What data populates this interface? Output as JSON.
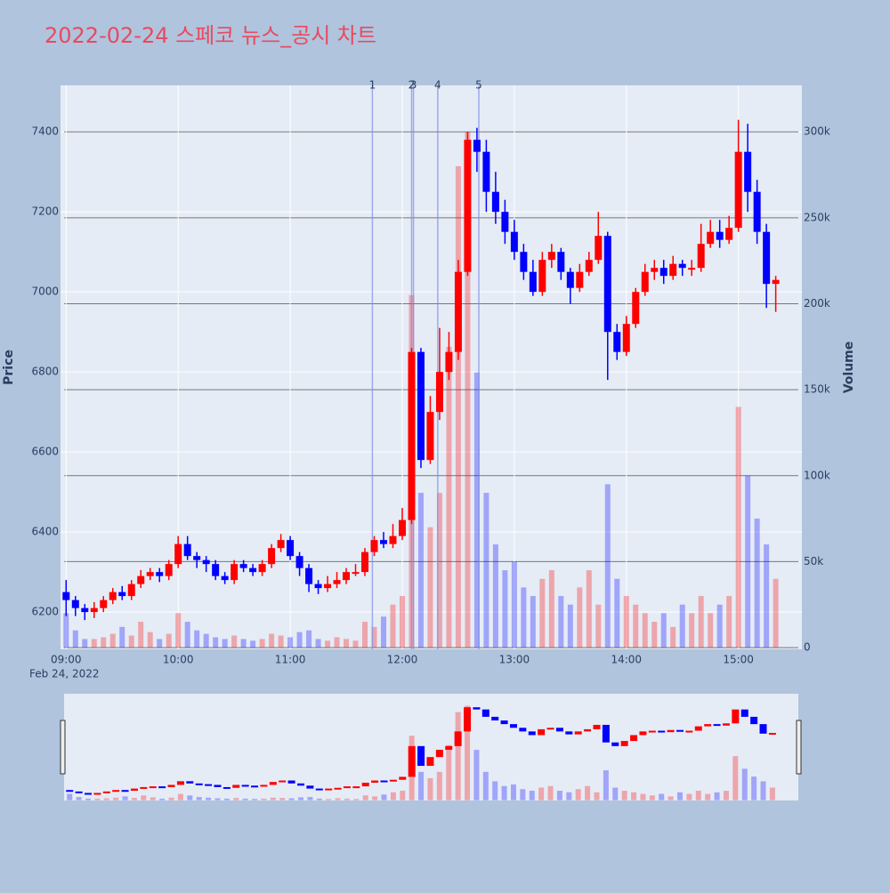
{
  "chart_data": {
    "type": "candlestick",
    "title": "2022-02-24 스페코 뉴스_공시 차트",
    "y_title": "Price",
    "y2_title": "Volume",
    "x_sublabel": "Feb 24, 2022",
    "increasing_color": "#ff0000",
    "decreasing_color": "#0000ff",
    "x": [
      "09:00",
      "09:05",
      "09:10",
      "09:15",
      "09:20",
      "09:25",
      "09:30",
      "09:35",
      "09:40",
      "09:45",
      "09:50",
      "09:55",
      "10:00",
      "10:05",
      "10:10",
      "10:15",
      "10:20",
      "10:25",
      "10:30",
      "10:35",
      "10:40",
      "10:45",
      "10:50",
      "10:55",
      "11:00",
      "11:05",
      "11:10",
      "11:15",
      "11:20",
      "11:25",
      "11:30",
      "11:35",
      "11:40",
      "11:45",
      "11:50",
      "11:55",
      "12:00",
      "12:05",
      "12:10",
      "12:15",
      "12:20",
      "12:25",
      "12:30",
      "12:35",
      "12:40",
      "12:45",
      "12:50",
      "12:55",
      "13:00",
      "13:05",
      "13:10",
      "13:15",
      "13:20",
      "13:25",
      "13:30",
      "13:35",
      "13:40",
      "13:45",
      "13:50",
      "13:55",
      "14:00",
      "14:05",
      "14:10",
      "14:15",
      "14:20",
      "14:25",
      "14:30",
      "14:35",
      "14:40",
      "14:45",
      "14:50",
      "14:55",
      "15:00",
      "15:05",
      "15:10",
      "15:15",
      "15:20"
    ],
    "open": [
      6250,
      6230,
      6210,
      6200,
      6210,
      6230,
      6250,
      6240,
      6270,
      6290,
      6300,
      6290,
      6320,
      6370,
      6340,
      6330,
      6320,
      6290,
      6280,
      6320,
      6310,
      6300,
      6320,
      6360,
      6380,
      6340,
      6310,
      6270,
      6260,
      6270,
      6280,
      6300,
      6300,
      6350,
      6380,
      6370,
      6390,
      6430,
      6850,
      6580,
      6700,
      6800,
      6850,
      7050,
      7380,
      7350,
      7250,
      7200,
      7150,
      7100,
      7050,
      7000,
      7080,
      7100,
      7050,
      7010,
      7050,
      7080,
      7140,
      6900,
      6850,
      6920,
      7000,
      7050,
      7060,
      7040,
      7070,
      7060,
      7060,
      7120,
      7150,
      7130,
      7160,
      7350,
      7250,
      7150,
      7020
    ],
    "high": [
      6280,
      6240,
      6220,
      6225,
      6240,
      6260,
      6265,
      6280,
      6305,
      6310,
      6310,
      6330,
      6390,
      6390,
      6350,
      6340,
      6330,
      6300,
      6330,
      6330,
      6320,
      6330,
      6370,
      6395,
      6390,
      6350,
      6320,
      6280,
      6290,
      6300,
      6310,
      6320,
      6360,
      6390,
      6400,
      6420,
      6460,
      6860,
      6860,
      6740,
      6910,
      6900,
      7080,
      7400,
      7410,
      7380,
      7300,
      7230,
      7180,
      7120,
      7080,
      7100,
      7120,
      7110,
      7060,
      7070,
      7100,
      7200,
      7150,
      6920,
      6940,
      7010,
      7070,
      7080,
      7080,
      7090,
      7080,
      7080,
      7170,
      7180,
      7180,
      7190,
      7430,
      7420,
      7280,
      7170,
      7040
    ],
    "low": [
      6190,
      6190,
      6180,
      6185,
      6200,
      6220,
      6230,
      6230,
      6260,
      6280,
      6275,
      6280,
      6310,
      6330,
      6310,
      6300,
      6280,
      6270,
      6270,
      6300,
      6290,
      6290,
      6310,
      6350,
      6330,
      6290,
      6250,
      6245,
      6250,
      6260,
      6270,
      6290,
      6290,
      6340,
      6360,
      6360,
      6380,
      6420,
      6560,
      6570,
      6680,
      6780,
      6830,
      7040,
      7300,
      7200,
      7170,
      7120,
      7080,
      7030,
      6990,
      6990,
      7060,
      7030,
      6970,
      7000,
      7040,
      7070,
      6780,
      6830,
      6840,
      6910,
      6990,
      7030,
      7020,
      7030,
      7040,
      7040,
      7050,
      7110,
      7110,
      7120,
      7150,
      7200,
      7120,
      6960,
      6950
    ],
    "close": [
      6230,
      6210,
      6200,
      6210,
      6230,
      6250,
      6240,
      6270,
      6290,
      6300,
      6290,
      6320,
      6370,
      6340,
      6330,
      6320,
      6290,
      6280,
      6320,
      6310,
      6300,
      6320,
      6360,
      6380,
      6340,
      6310,
      6270,
      6260,
      6270,
      6280,
      6300,
      6300,
      6350,
      6380,
      6370,
      6390,
      6430,
      6850,
      6580,
      6700,
      6800,
      6850,
      7050,
      7380,
      7350,
      7250,
      7200,
      7150,
      7100,
      7050,
      7000,
      7080,
      7100,
      7050,
      7010,
      7050,
      7080,
      7140,
      6900,
      6850,
      6920,
      7000,
      7050,
      7060,
      7040,
      7070,
      7060,
      7060,
      7120,
      7150,
      7130,
      7160,
      7350,
      7250,
      7150,
      7020,
      7030
    ],
    "volume": [
      20000,
      10000,
      5000,
      5000,
      6000,
      8000,
      12000,
      7000,
      15000,
      9000,
      5000,
      8000,
      20000,
      15000,
      10000,
      8000,
      6000,
      5000,
      7000,
      5000,
      4000,
      5000,
      8000,
      7000,
      6000,
      9000,
      10000,
      5000,
      4000,
      6000,
      5000,
      4000,
      15000,
      12000,
      18000,
      25000,
      30000,
      205000,
      90000,
      70000,
      90000,
      175000,
      280000,
      300000,
      160000,
      90000,
      60000,
      45000,
      50000,
      35000,
      30000,
      40000,
      45000,
      30000,
      25000,
      35000,
      45000,
      25000,
      95000,
      40000,
      30000,
      25000,
      20000,
      15000,
      20000,
      12000,
      25000,
      20000,
      30000,
      20000,
      25000,
      30000,
      140000,
      100000,
      75000,
      60000,
      40000
    ],
    "news": [
      {
        "label": "1",
        "x": "11:44"
      },
      {
        "label": "2",
        "x": "12:05"
      },
      {
        "label": "3",
        "x": "12:06"
      },
      {
        "label": "4",
        "x": "12:19"
      },
      {
        "label": "5",
        "x": "12:41"
      }
    ],
    "xlim": [
      "08:57",
      "15:34"
    ],
    "xticks": [
      "09:00",
      "10:00",
      "11:00",
      "12:00",
      "13:00",
      "14:00",
      "15:00"
    ],
    "ylim": [
      6107,
      7516
    ],
    "yticks": [
      6200,
      6400,
      6600,
      6800,
      7000,
      7200,
      7400
    ],
    "y2lim": [
      -1000,
      327000
    ],
    "y2ticks": [
      0,
      {
        "value": 50000,
        "label": "50k"
      },
      {
        "value": 100000,
        "label": "100k"
      },
      {
        "value": 150000,
        "label": "150k"
      },
      {
        "value": 200000,
        "label": "200k"
      },
      {
        "value": 250000,
        "label": "250k"
      },
      {
        "value": 300000,
        "label": "300k"
      }
    ]
  }
}
